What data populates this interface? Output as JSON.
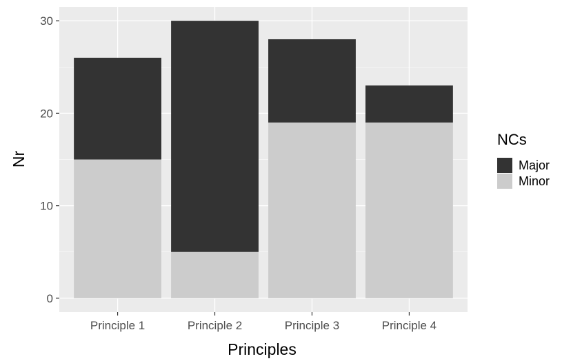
{
  "chart_data": {
    "type": "bar",
    "stacked": true,
    "categories": [
      "Principle 1",
      "Principle 2",
      "Principle 3",
      "Principle 4"
    ],
    "series": [
      {
        "name": "Minor",
        "values": [
          15,
          5,
          19,
          19
        ],
        "color": "#cccccc"
      },
      {
        "name": "Major",
        "values": [
          11,
          25,
          9,
          4
        ],
        "color": "#333333"
      }
    ],
    "xlabel": "Principles",
    "ylabel": "Nr",
    "ylim": [
      -1.5,
      31.5
    ],
    "yticks": [
      0,
      10,
      20,
      30
    ],
    "grid": true,
    "panel_background": "#ebebeb",
    "grid_color": "#ffffff",
    "legend": {
      "title": "NCs",
      "position": "right",
      "entries": [
        {
          "label": "Major",
          "color": "#333333"
        },
        {
          "label": "Minor",
          "color": "#cccccc"
        }
      ]
    }
  }
}
